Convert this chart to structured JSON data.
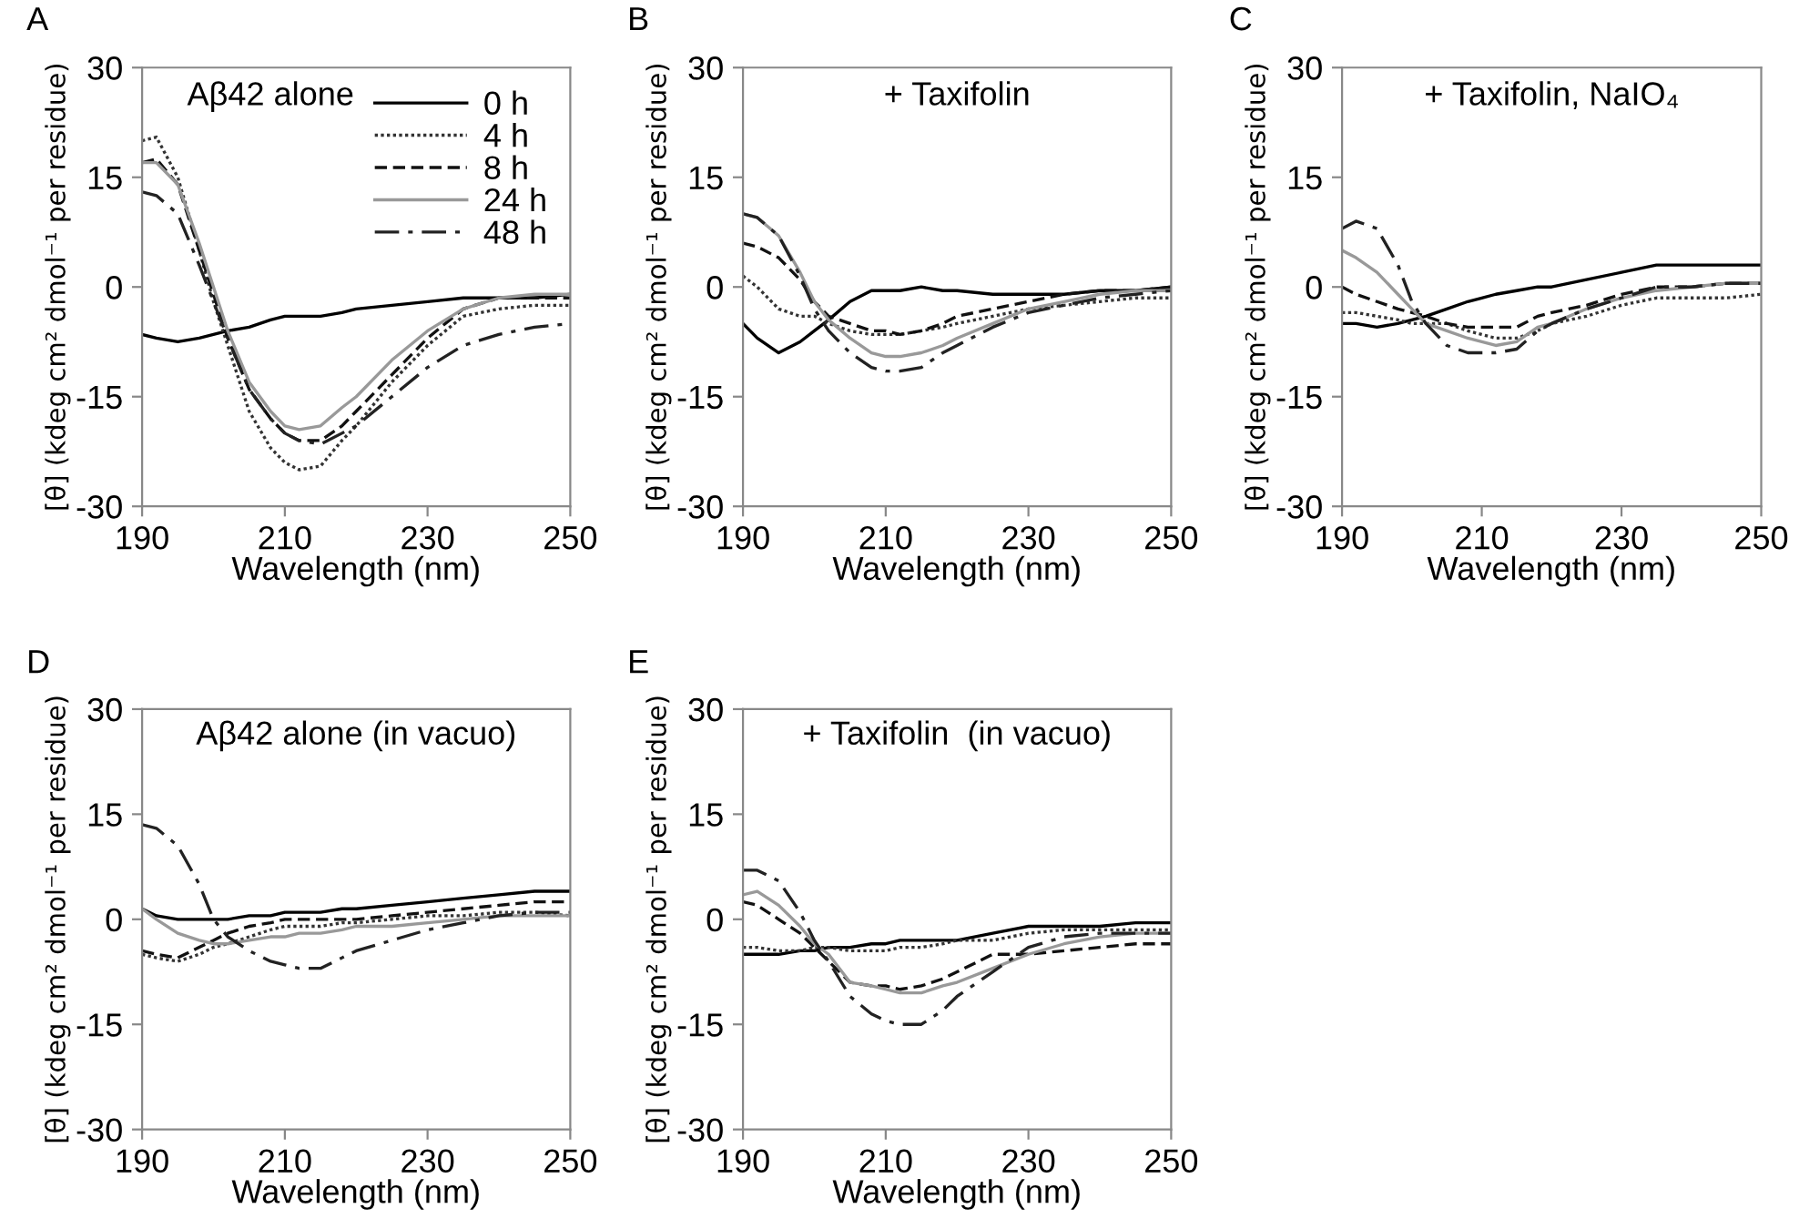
{
  "chart_data": [
    {
      "type": "line",
      "title": "Aβ42 alone",
      "annotations": [
        "A"
      ],
      "xlabel": "Wavelength (nm)",
      "ylabel": "[θ] (kdeg cm² dmol⁻¹ per residue)",
      "xlim": [
        190,
        250
      ],
      "xticks": [
        190,
        210,
        230,
        250
      ],
      "ylim": [
        -30,
        30
      ],
      "yticks": [
        -30,
        -15,
        0,
        15,
        30
      ],
      "grid": false,
      "legend": "top right",
      "x": [
        190,
        192,
        195,
        198,
        200,
        202,
        205,
        208,
        210,
        212,
        215,
        218,
        220,
        225,
        230,
        235,
        240,
        245,
        250
      ],
      "series": [
        {
          "name": "0 h",
          "color": "#000000",
          "line_style": "solid",
          "values": [
            -6.5,
            -7,
            -7.5,
            -7,
            -6.5,
            -6,
            -5.5,
            -4.5,
            -4,
            -4,
            -4,
            -3.5,
            -3,
            -2.5,
            -2,
            -1.5,
            -1.5,
            -1.5,
            -1
          ]
        },
        {
          "name": "4 h",
          "color": "#333333",
          "line_style": "dotted",
          "values": [
            20,
            20.5,
            15,
            5,
            -2,
            -8,
            -17,
            -22,
            -24,
            -25,
            -24.5,
            -21,
            -19,
            -13,
            -8,
            -4,
            -3,
            -2.5,
            -2.5
          ]
        },
        {
          "name": "8 h",
          "color": "#111111",
          "line_style": "dashed",
          "values": [
            17,
            17.5,
            14,
            5,
            -1,
            -7,
            -14,
            -18,
            -20,
            -21,
            -21,
            -19,
            -17,
            -12,
            -7,
            -3,
            -1.5,
            -1.5,
            -1.5
          ]
        },
        {
          "name": "24 h",
          "color": "#999999",
          "line_style": "solid",
          "values": [
            17,
            17,
            14,
            6,
            0,
            -6,
            -13,
            -17,
            -19,
            -19.5,
            -19,
            -16.5,
            -15,
            -10,
            -6,
            -3,
            -1.5,
            -1,
            -1
          ]
        },
        {
          "name": "48 h",
          "color": "#222222",
          "line_style": "dashdot",
          "values": [
            13,
            12.5,
            10,
            3,
            -2,
            -7,
            -14,
            -18,
            -20,
            -21,
            -21.5,
            -20,
            -19,
            -15,
            -11,
            -8,
            -6.5,
            -5.5,
            -5
          ]
        }
      ]
    },
    {
      "type": "line",
      "title": "+ Taxifolin",
      "annotations": [
        "B"
      ],
      "xlabel": "Wavelength (nm)",
      "ylabel": "[θ] (kdeg cm² dmol⁻¹ per residue)",
      "xlim": [
        190,
        250
      ],
      "xticks": [
        190,
        210,
        230,
        250
      ],
      "ylim": [
        -30,
        30
      ],
      "yticks": [
        -30,
        -15,
        0,
        15,
        30
      ],
      "grid": false,
      "x": [
        190,
        192,
        195,
        198,
        200,
        202,
        205,
        208,
        210,
        212,
        215,
        218,
        220,
        225,
        230,
        235,
        240,
        245,
        250
      ],
      "series": [
        {
          "color": "#000000",
          "line_style": "solid",
          "values": [
            -5,
            -7,
            -9,
            -7.5,
            -6,
            -4.5,
            -2,
            -0.5,
            -0.5,
            -0.5,
            0,
            -0.5,
            -0.5,
            -1,
            -1,
            -1,
            -0.5,
            -0.5,
            0
          ]
        },
        {
          "color": "#333333",
          "line_style": "dotted",
          "values": [
            1.5,
            0,
            -3,
            -4,
            -4,
            -5,
            -6,
            -6.5,
            -6.5,
            -6.5,
            -6,
            -5.5,
            -5,
            -4,
            -3,
            -2.5,
            -2,
            -1.5,
            -1.5
          ]
        },
        {
          "color": "#111111",
          "line_style": "dashed",
          "values": [
            6,
            5.5,
            4,
            1,
            -2,
            -4,
            -5,
            -6,
            -6,
            -6.5,
            -6,
            -5,
            -4,
            -3,
            -2,
            -1,
            -0.5,
            -0.5,
            0
          ]
        },
        {
          "color": "#999999",
          "line_style": "solid",
          "values": [
            10,
            9.5,
            7,
            2,
            -2,
            -4.5,
            -7,
            -9,
            -9.5,
            -9.5,
            -9,
            -8,
            -7,
            -5,
            -3,
            -2,
            -1,
            -0.5,
            -0.5
          ]
        },
        {
          "color": "#222222",
          "line_style": "dashdot",
          "values": [
            10,
            9.5,
            7,
            1.5,
            -3,
            -6,
            -9,
            -11,
            -11.5,
            -11.5,
            -11,
            -9,
            -8,
            -5.5,
            -3.5,
            -2.5,
            -1.5,
            -1,
            -0.5
          ]
        }
      ]
    },
    {
      "type": "line",
      "title": "+ Taxifolin, NaIO₄",
      "annotations": [
        "C"
      ],
      "xlabel": "Wavelength (nm)",
      "ylabel": "[θ] (kdeg cm² dmol⁻¹ per residue)",
      "xlim": [
        190,
        250
      ],
      "xticks": [
        190,
        210,
        230,
        250
      ],
      "ylim": [
        -30,
        30
      ],
      "yticks": [
        -30,
        -15,
        0,
        15,
        30
      ],
      "grid": false,
      "x": [
        190,
        192,
        195,
        198,
        200,
        202,
        205,
        208,
        210,
        212,
        215,
        218,
        220,
        225,
        230,
        235,
        240,
        245,
        250
      ],
      "series": [
        {
          "color": "#000000",
          "line_style": "solid",
          "values": [
            -5,
            -5,
            -5.5,
            -5,
            -4.5,
            -4,
            -3,
            -2,
            -1.5,
            -1,
            -0.5,
            0,
            0,
            1,
            2,
            3,
            3,
            3,
            3
          ]
        },
        {
          "color": "#333333",
          "line_style": "dotted",
          "values": [
            -3.5,
            -3.5,
            -4,
            -4.5,
            -5,
            -5,
            -5,
            -6,
            -6.5,
            -7,
            -7,
            -6,
            -5,
            -4,
            -2.5,
            -1.5,
            -1.5,
            -1.5,
            -1
          ]
        },
        {
          "color": "#111111",
          "line_style": "dashed",
          "values": [
            0,
            -1,
            -2,
            -3,
            -3.5,
            -4,
            -5,
            -5.5,
            -5.5,
            -5.5,
            -5.5,
            -4,
            -3.5,
            -2.5,
            -1,
            0,
            0,
            0.5,
            0.5
          ]
        },
        {
          "color": "#999999",
          "line_style": "solid",
          "values": [
            5,
            4,
            2,
            -1,
            -3,
            -5,
            -6,
            -7,
            -7.5,
            -8,
            -7.5,
            -5.5,
            -5,
            -3,
            -1.5,
            -0.5,
            0,
            0.5,
            0.5
          ]
        },
        {
          "color": "#222222",
          "line_style": "dashdot",
          "values": [
            8,
            9,
            8,
            3,
            -2,
            -5,
            -8,
            -9,
            -9,
            -9,
            -8.5,
            -6,
            -5,
            -3,
            -1.5,
            0,
            0,
            0.5,
            0.5
          ]
        }
      ]
    },
    {
      "type": "line",
      "title": "Aβ42 alone (in vacuo)",
      "annotations": [
        "D"
      ],
      "xlabel": "Wavelength (nm)",
      "ylabel": "[θ] (kdeg cm² dmol⁻¹ per residue)",
      "xlim": [
        190,
        250
      ],
      "xticks": [
        190,
        210,
        230,
        250
      ],
      "ylim": [
        -30,
        30
      ],
      "yticks": [
        -30,
        -15,
        0,
        15,
        30
      ],
      "grid": false,
      "x": [
        190,
        192,
        195,
        198,
        200,
        202,
        205,
        208,
        210,
        212,
        215,
        218,
        220,
        225,
        230,
        235,
        240,
        245,
        250
      ],
      "series": [
        {
          "color": "#000000",
          "line_style": "solid",
          "values": [
            1.5,
            0.5,
            0,
            0,
            0,
            0,
            0.5,
            0.5,
            1,
            1,
            1,
            1.5,
            1.5,
            2,
            2.5,
            3,
            3.5,
            4,
            4
          ]
        },
        {
          "color": "#333333",
          "line_style": "dotted",
          "values": [
            -5,
            -5.5,
            -6,
            -5,
            -4,
            -3.5,
            -2.5,
            -1.5,
            -1,
            -1,
            -1,
            -0.5,
            -0.5,
            0,
            0.5,
            0.5,
            1,
            1,
            0.5
          ]
        },
        {
          "color": "#111111",
          "line_style": "dashed",
          "values": [
            -4.5,
            -5,
            -5.5,
            -4,
            -3,
            -2,
            -1,
            -0.5,
            0,
            0,
            0,
            0,
            0,
            0.5,
            1,
            1.5,
            2,
            2.5,
            2.5
          ]
        },
        {
          "color": "#999999",
          "line_style": "solid",
          "values": [
            1.5,
            0,
            -2,
            -3,
            -3.5,
            -3.5,
            -3,
            -2.5,
            -2.5,
            -2,
            -2,
            -1.5,
            -1,
            -1,
            -0.5,
            0,
            0.5,
            0.5,
            0.5
          ]
        },
        {
          "color": "#222222",
          "line_style": "dashdot",
          "values": [
            13.5,
            13,
            10.5,
            5,
            0,
            -2.5,
            -4.5,
            -6,
            -6.5,
            -7,
            -7,
            -5.5,
            -4.5,
            -3,
            -1.5,
            -0.5,
            0.5,
            1,
            1
          ]
        }
      ]
    },
    {
      "type": "line",
      "title": "+ Taxifolin  (in vacuo)",
      "annotations": [
        "E"
      ],
      "xlabel": "Wavelength (nm)",
      "ylabel": "[θ] (kdeg cm² dmol⁻¹ per residue)",
      "xlim": [
        190,
        250
      ],
      "xticks": [
        190,
        210,
        230,
        250
      ],
      "ylim": [
        -30,
        30
      ],
      "yticks": [
        -30,
        -15,
        0,
        15,
        30
      ],
      "grid": false,
      "x": [
        190,
        192,
        195,
        198,
        200,
        202,
        205,
        208,
        210,
        212,
        215,
        218,
        220,
        225,
        230,
        235,
        240,
        245,
        250
      ],
      "series": [
        {
          "color": "#000000",
          "line_style": "solid",
          "values": [
            -5,
            -5,
            -5,
            -4.5,
            -4.5,
            -4,
            -4,
            -3.5,
            -3.5,
            -3,
            -3,
            -3,
            -3,
            -2,
            -1,
            -1,
            -1,
            -0.5,
            -0.5
          ]
        },
        {
          "color": "#333333",
          "line_style": "dotted",
          "values": [
            -4,
            -4,
            -4.5,
            -4.5,
            -4,
            -4,
            -4.5,
            -4.5,
            -4.5,
            -4,
            -4,
            -3.5,
            -3,
            -3,
            -2,
            -1.5,
            -1.5,
            -1.5,
            -1.5
          ]
        },
        {
          "color": "#111111",
          "line_style": "dashed",
          "values": [
            2.5,
            2,
            0,
            -2,
            -4,
            -6,
            -9,
            -9.5,
            -9.5,
            -10,
            -9.5,
            -8.5,
            -7.5,
            -5,
            -5,
            -4.5,
            -4,
            -3.5,
            -3.5
          ]
        },
        {
          "color": "#999999",
          "line_style": "solid",
          "values": [
            3.5,
            4,
            2,
            -1,
            -3.5,
            -5,
            -9,
            -9.5,
            -10,
            -10.5,
            -10.5,
            -9.5,
            -9,
            -7,
            -5,
            -3.5,
            -2.5,
            -2,
            -2
          ]
        },
        {
          "color": "#222222",
          "line_style": "dashdot",
          "values": [
            7,
            7,
            5.5,
            1,
            -3,
            -6,
            -11,
            -13.5,
            -14.5,
            -15,
            -15,
            -13,
            -11,
            -7.5,
            -4,
            -2.5,
            -2,
            -2,
            -2
          ]
        }
      ]
    }
  ]
}
